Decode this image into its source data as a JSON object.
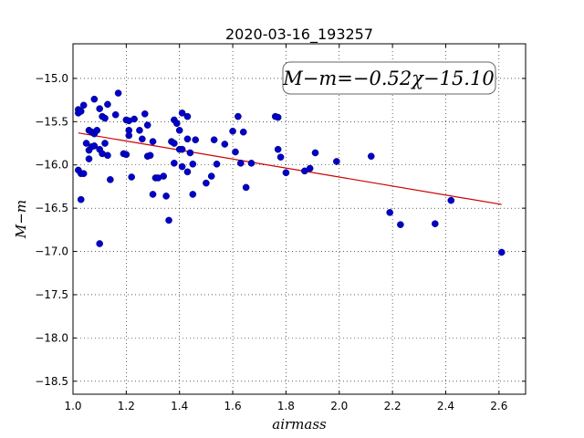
{
  "chart_data": {
    "type": "scatter",
    "title": "2020-03-16_193257",
    "xlabel": "airmass",
    "ylabel": "M−m",
    "xlim": [
      1.0,
      2.7
    ],
    "ylim": [
      -18.65,
      -14.6
    ],
    "xticks": [
      1.0,
      1.2,
      1.4,
      1.6,
      1.8,
      2.0,
      2.2,
      2.4,
      2.6
    ],
    "xtick_labels": [
      "1.0",
      "1.2",
      "1.4",
      "1.6",
      "1.8",
      "2.0",
      "2.2",
      "2.4",
      "2.6"
    ],
    "yticks": [
      -15.0,
      -15.5,
      -16.0,
      -16.5,
      -17.0,
      -17.5,
      -18.0,
      -18.5
    ],
    "ytick_labels": [
      "−15.0",
      "−15.5",
      "−16.0",
      "−16.5",
      "−17.0",
      "−17.5",
      "−18.0",
      "−18.5"
    ],
    "grid": true,
    "annotation": "M−m=−0.52χ−15.10",
    "fit": {
      "slope": -0.52,
      "intercept": -15.1,
      "x_range": [
        1.02,
        2.61
      ],
      "color": "#cc0000"
    },
    "point_color": "#0000cc",
    "points": [
      [
        1.02,
        -15.36
      ],
      [
        1.02,
        -15.4
      ],
      [
        1.03,
        -15.38
      ],
      [
        1.04,
        -15.31
      ],
      [
        1.02,
        -16.06
      ],
      [
        1.03,
        -16.1
      ],
      [
        1.04,
        -16.1
      ],
      [
        1.03,
        -16.4
      ],
      [
        1.05,
        -15.75
      ],
      [
        1.06,
        -15.83
      ],
      [
        1.06,
        -15.6
      ],
      [
        1.07,
        -15.62
      ],
      [
        1.06,
        -15.93
      ],
      [
        1.07,
        -15.79
      ],
      [
        1.08,
        -15.64
      ],
      [
        1.08,
        -15.78
      ],
      [
        1.09,
        -15.6
      ],
      [
        1.08,
        -15.24
      ],
      [
        1.1,
        -15.35
      ],
      [
        1.11,
        -15.44
      ],
      [
        1.12,
        -15.46
      ],
      [
        1.13,
        -15.3
      ],
      [
        1.1,
        -15.82
      ],
      [
        1.11,
        -15.87
      ],
      [
        1.12,
        -15.75
      ],
      [
        1.13,
        -15.89
      ],
      [
        1.14,
        -16.17
      ],
      [
        1.1,
        -16.91
      ],
      [
        1.16,
        -15.42
      ],
      [
        1.17,
        -15.17
      ],
      [
        1.19,
        -15.87
      ],
      [
        1.2,
        -15.88
      ],
      [
        1.2,
        -15.48
      ],
      [
        1.21,
        -15.49
      ],
      [
        1.21,
        -15.6
      ],
      [
        1.21,
        -15.66
      ],
      [
        1.22,
        -16.14
      ],
      [
        1.23,
        -15.47
      ],
      [
        1.25,
        -15.6
      ],
      [
        1.26,
        -15.7
      ],
      [
        1.27,
        -15.41
      ],
      [
        1.28,
        -15.54
      ],
      [
        1.28,
        -15.9
      ],
      [
        1.29,
        -15.89
      ],
      [
        1.3,
        -15.73
      ],
      [
        1.3,
        -16.34
      ],
      [
        1.31,
        -16.15
      ],
      [
        1.32,
        -16.15
      ],
      [
        1.34,
        -16.13
      ],
      [
        1.35,
        -16.36
      ],
      [
        1.36,
        -16.64
      ],
      [
        1.37,
        -15.73
      ],
      [
        1.38,
        -15.98
      ],
      [
        1.38,
        -15.75
      ],
      [
        1.38,
        -15.48
      ],
      [
        1.39,
        -15.52
      ],
      [
        1.4,
        -15.6
      ],
      [
        1.4,
        -15.82
      ],
      [
        1.41,
        -15.4
      ],
      [
        1.41,
        -15.82
      ],
      [
        1.41,
        -16.02
      ],
      [
        1.43,
        -15.44
      ],
      [
        1.43,
        -15.7
      ],
      [
        1.43,
        -16.08
      ],
      [
        1.44,
        -15.86
      ],
      [
        1.45,
        -15.99
      ],
      [
        1.45,
        -16.34
      ],
      [
        1.46,
        -15.71
      ],
      [
        1.5,
        -16.21
      ],
      [
        1.52,
        -16.13
      ],
      [
        1.53,
        -15.71
      ],
      [
        1.54,
        -15.99
      ],
      [
        1.57,
        -15.76
      ],
      [
        1.6,
        -15.61
      ],
      [
        1.61,
        -15.85
      ],
      [
        1.62,
        -15.44
      ],
      [
        1.63,
        -15.98
      ],
      [
        1.64,
        -15.62
      ],
      [
        1.65,
        -16.26
      ],
      [
        1.67,
        -15.98
      ],
      [
        1.76,
        -15.44
      ],
      [
        1.77,
        -15.45
      ],
      [
        1.77,
        -15.82
      ],
      [
        1.78,
        -15.91
      ],
      [
        1.8,
        -16.09
      ],
      [
        1.87,
        -16.07
      ],
      [
        1.89,
        -16.04
      ],
      [
        1.91,
        -15.86
      ],
      [
        1.99,
        -15.96
      ],
      [
        2.12,
        -15.9
      ],
      [
        2.19,
        -16.55
      ],
      [
        2.23,
        -16.69
      ],
      [
        2.36,
        -16.68
      ],
      [
        2.42,
        -16.41
      ],
      [
        2.61,
        -17.01
      ]
    ]
  }
}
